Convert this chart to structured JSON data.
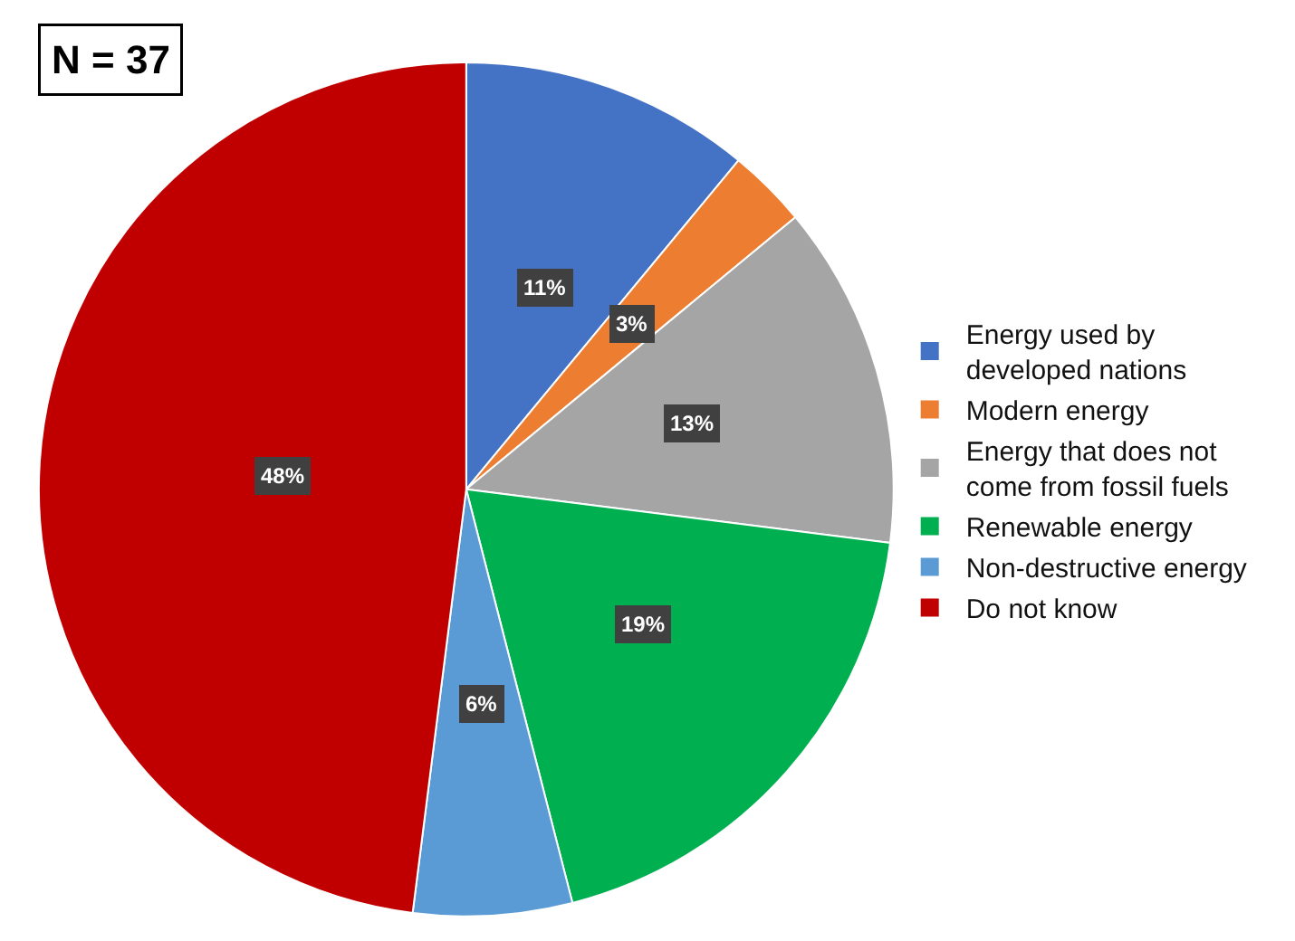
{
  "chart_data": {
    "type": "pie",
    "categories": [
      "Energy used by developed nations",
      "Modern energy",
      "Energy that does not come from fossil fuels",
      "Renewable energy",
      "Non-destructive energy",
      "Do not know"
    ],
    "values": [
      11,
      3,
      13,
      19,
      6,
      48
    ],
    "colors": [
      "#4472c4",
      "#ed7d31",
      "#a5a5a5",
      "#00b050",
      "#5b9bd5",
      "#c00000"
    ],
    "value_labels": [
      "11%",
      "3%",
      "13%",
      "19%",
      "6%",
      "48%"
    ],
    "legend": "right",
    "annotations": [
      "N = 37"
    ]
  }
}
